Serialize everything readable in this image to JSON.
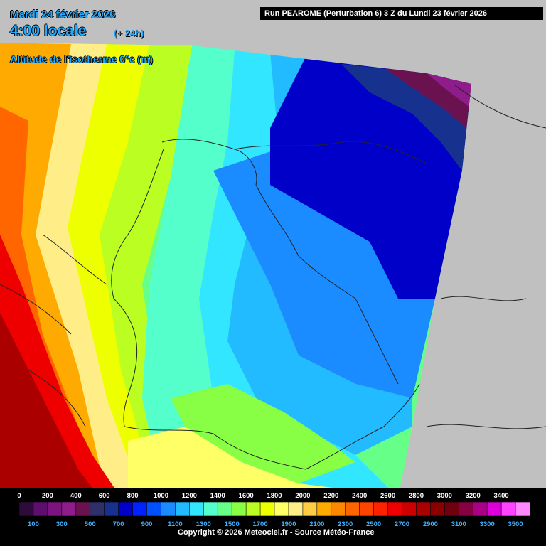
{
  "header": {
    "date": "Mardi 24 février 2026",
    "local_time": "4:00 locale",
    "lead_time": "(+ 24h)",
    "variable": "Altitude de l'isotherme 0°c (m)",
    "run_info": "Run PEAROME (Perturbation 6) 3 Z du Lundi 23 février 2026"
  },
  "legend": {
    "top_labels": [
      "0",
      "200",
      "400",
      "600",
      "800",
      "1000",
      "1200",
      "1400",
      "1600",
      "1800",
      "2000",
      "2200",
      "2400",
      "2600",
      "2800",
      "3000",
      "3200",
      "3400"
    ],
    "bottom_labels": [
      "100",
      "300",
      "500",
      "700",
      "900",
      "1100",
      "1300",
      "1500",
      "1700",
      "1900",
      "2100",
      "2300",
      "2500",
      "2700",
      "2900",
      "3100",
      "3300",
      "3500"
    ],
    "colors": [
      "#2d0b3a",
      "#5e0f6e",
      "#7b1480",
      "#8e1c8a",
      "#6a1250",
      "#2e2f6b",
      "#17318f",
      "#0000c8",
      "#0022ff",
      "#0050ff",
      "#1a8cff",
      "#22bbff",
      "#33e6ff",
      "#55ffcc",
      "#66ff88",
      "#88ff44",
      "#bbff22",
      "#eeff00",
      "#ffff66",
      "#ffee88",
      "#ffcc44",
      "#ffaa00",
      "#ff8800",
      "#ff6600",
      "#ff4400",
      "#ff2200",
      "#ee0000",
      "#cc0000",
      "#aa0000",
      "#880000",
      "#6e0010",
      "#880044",
      "#aa0088",
      "#dd00dd",
      "#ff44ff",
      "#ff88ff"
    ],
    "copyright": "Copyright © 2026 Meteociel.fr - Source Météo-France"
  },
  "map_palette": {
    "no_data": "#c0c0c0",
    "border_line": "#222222"
  }
}
